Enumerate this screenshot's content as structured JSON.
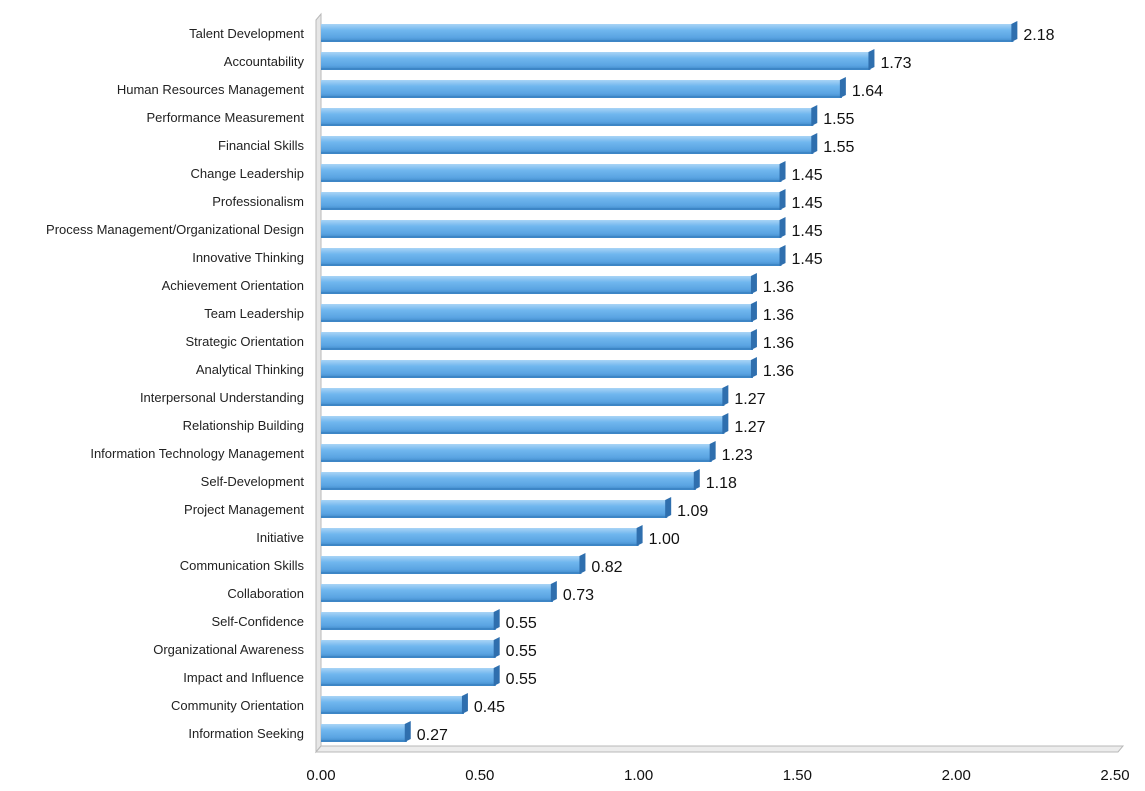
{
  "chart_data": {
    "type": "bar",
    "orientation": "horizontal",
    "categories": [
      "Talent Development",
      "Accountability",
      "Human Resources Management",
      "Performance Measurement",
      "Financial Skills",
      "Change Leadership",
      "Professionalism",
      "Process Management/Organizational Design",
      "Innovative Thinking",
      "Achievement Orientation",
      "Team Leadership",
      "Strategic Orientation",
      "Analytical Thinking",
      "Interpersonal Understanding",
      "Relationship Building",
      "Information Technology Management",
      "Self-Development",
      "Project Management",
      "Initiative",
      "Communication Skills",
      "Collaboration",
      "Self-Confidence",
      "Organizational Awareness",
      "Impact and Influence",
      "Community Orientation",
      "Information Seeking"
    ],
    "values": [
      2.18,
      1.73,
      1.64,
      1.55,
      1.55,
      1.45,
      1.45,
      1.45,
      1.45,
      1.36,
      1.36,
      1.36,
      1.36,
      1.27,
      1.27,
      1.23,
      1.18,
      1.09,
      1.0,
      0.82,
      0.73,
      0.55,
      0.55,
      0.55,
      0.45,
      0.27
    ],
    "value_labels": [
      "2.18",
      "1.73",
      "1.64",
      "1.55",
      "1.55",
      "1.45",
      "1.45",
      "1.45",
      "1.45",
      "1.36",
      "1.36",
      "1.36",
      "1.36",
      "1.27",
      "1.27",
      "1.23",
      "1.18",
      "1.09",
      "1.00",
      "0.82",
      "0.73",
      "0.55",
      "0.55",
      "0.55",
      "0.45",
      "0.27"
    ],
    "xlim": [
      0,
      2.5
    ],
    "x_ticks": [
      0,
      0.5,
      1.0,
      1.5,
      2.0,
      2.5
    ],
    "x_tick_labels": [
      "0.00",
      "0.50",
      "1.00",
      "1.50",
      "2.00",
      "2.50"
    ],
    "title": "",
    "xlabel": "",
    "ylabel": "",
    "grid": false,
    "legend": "none",
    "colors": {
      "bar": "#63aee9",
      "bar_highlight": "#a9d4f6",
      "bar_shadow": "#3d86c6",
      "bar_end_cap": "#2f6fae",
      "axis": "#b9b9b9"
    }
  }
}
